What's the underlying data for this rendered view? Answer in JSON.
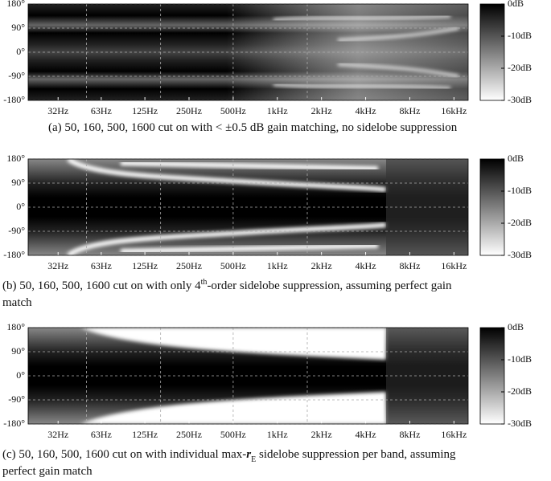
{
  "chart_data": [
    {
      "type": "heatmap",
      "xscale": "log",
      "xlim": [
        20,
        20000
      ],
      "ylim": [
        -180,
        180
      ],
      "grid": true,
      "xticks": [
        {
          "value": 32,
          "label": "32Hz"
        },
        {
          "value": 63,
          "label": "63Hz"
        },
        {
          "value": 125,
          "label": "125Hz"
        },
        {
          "value": 250,
          "label": "250Hz"
        },
        {
          "value": 500,
          "label": "500Hz"
        },
        {
          "value": 1000,
          "label": "1kHz"
        },
        {
          "value": 2000,
          "label": "2kHz"
        },
        {
          "value": 4000,
          "label": "4kHz"
        },
        {
          "value": 8000,
          "label": "8kHz"
        },
        {
          "value": 16000,
          "label": "16kHz"
        }
      ],
      "yticks": [
        {
          "value": 180,
          "label": "180°"
        },
        {
          "value": 90,
          "label": "90°"
        },
        {
          "value": 0,
          "label": "0°"
        },
        {
          "value": -90,
          "label": "-90°"
        },
        {
          "value": -180,
          "label": "-180°"
        }
      ],
      "vlines": [
        50,
        160,
        500,
        1600
      ],
      "clim": [
        -30,
        0
      ],
      "cticks": [
        {
          "value": 0,
          "label": "0dB"
        },
        {
          "value": -10,
          "label": "-10dB"
        },
        {
          "value": -20,
          "label": "-20dB"
        },
        {
          "value": -30,
          "label": "-30dB"
        }
      ],
      "caption": [
        [
          {
            "text": "(a)  50, 160, 500, 1600 cut on with < ±0.5 dB gain matching, no sidelobe suppression"
          }
        ]
      ]
    },
    {
      "type": "heatmap",
      "xscale": "log",
      "xlim": [
        20,
        20000
      ],
      "ylim": [
        -180,
        180
      ],
      "grid": true,
      "xticks": [
        {
          "value": 32,
          "label": "32Hz"
        },
        {
          "value": 63,
          "label": "63Hz"
        },
        {
          "value": 125,
          "label": "125Hz"
        },
        {
          "value": 250,
          "label": "250Hz"
        },
        {
          "value": 500,
          "label": "500Hz"
        },
        {
          "value": 1000,
          "label": "1kHz"
        },
        {
          "value": 2000,
          "label": "2kHz"
        },
        {
          "value": 4000,
          "label": "4kHz"
        },
        {
          "value": 8000,
          "label": "8kHz"
        },
        {
          "value": 16000,
          "label": "16kHz"
        }
      ],
      "yticks": [
        {
          "value": 180,
          "label": "180°"
        },
        {
          "value": 90,
          "label": "90°"
        },
        {
          "value": 0,
          "label": "0°"
        },
        {
          "value": -90,
          "label": "-90°"
        },
        {
          "value": -180,
          "label": "-180°"
        }
      ],
      "vlines": [
        50,
        160,
        500,
        1600
      ],
      "clim": [
        -30,
        0
      ],
      "cticks": [
        {
          "value": 0,
          "label": "0dB"
        },
        {
          "value": -10,
          "label": "-10dB"
        },
        {
          "value": -20,
          "label": "-20dB"
        },
        {
          "value": -30,
          "label": "-30dB"
        }
      ],
      "caption": [
        [
          {
            "text": "(b)  50, 160, 500, 1600 cut on with only 4"
          },
          {
            "text": "th",
            "shift": "super"
          },
          {
            "text": "-order sidelobe suppression, assuming perfect gain"
          }
        ],
        [
          {
            "text": "match"
          }
        ]
      ]
    },
    {
      "type": "heatmap",
      "xscale": "log",
      "xlim": [
        20,
        20000
      ],
      "ylim": [
        -180,
        180
      ],
      "grid": true,
      "xticks": [
        {
          "value": 32,
          "label": "32Hz"
        },
        {
          "value": 63,
          "label": "63Hz"
        },
        {
          "value": 125,
          "label": "125Hz"
        },
        {
          "value": 250,
          "label": "250Hz"
        },
        {
          "value": 500,
          "label": "500Hz"
        },
        {
          "value": 1000,
          "label": "1kHz"
        },
        {
          "value": 2000,
          "label": "2kHz"
        },
        {
          "value": 4000,
          "label": "4kHz"
        },
        {
          "value": 8000,
          "label": "8kHz"
        },
        {
          "value": 16000,
          "label": "16kHz"
        }
      ],
      "yticks": [
        {
          "value": 180,
          "label": "180°"
        },
        {
          "value": 90,
          "label": "90°"
        },
        {
          "value": 0,
          "label": "0°"
        },
        {
          "value": -90,
          "label": "-90°"
        },
        {
          "value": -180,
          "label": "-180°"
        }
      ],
      "vlines": [
        50,
        160,
        500,
        1600
      ],
      "clim": [
        -30,
        0
      ],
      "cticks": [
        {
          "value": 0,
          "label": "0dB"
        },
        {
          "value": -10,
          "label": "-10dB"
        },
        {
          "value": -20,
          "label": "-20dB"
        },
        {
          "value": -30,
          "label": "-30dB"
        }
      ],
      "caption": [
        [
          {
            "text": "(c)  50, 160, 500, 1600 cut on with individual max-"
          },
          {
            "text": "r",
            "style": "bold-italic"
          },
          {
            "text": "E",
            "shift": "sub"
          },
          {
            "text": " sidelobe suppression per band, assuming"
          }
        ],
        [
          {
            "text": "perfect gain match"
          }
        ]
      ]
    }
  ]
}
